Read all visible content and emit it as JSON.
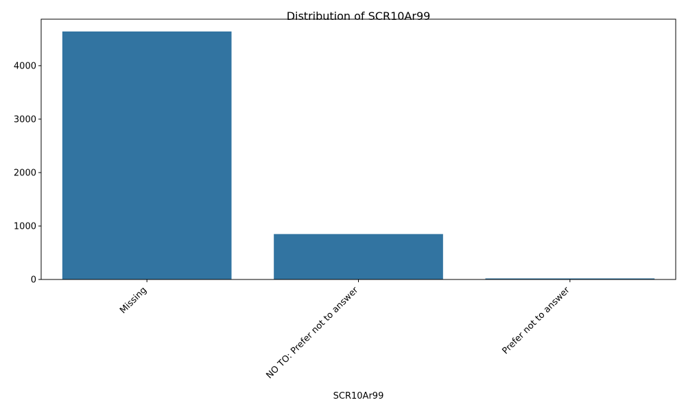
{
  "chart_data": {
    "type": "bar",
    "title": "Distribution of SCR10Ar99",
    "xlabel": "SCR10Ar99",
    "ylabel": "",
    "categories": [
      "Missing",
      "NO TO: Prefer not to answer",
      "Prefer not to answer"
    ],
    "values": [
      4640,
      850,
      20
    ],
    "ylim": [
      0,
      4870
    ],
    "yticks": [
      0,
      1000,
      2000,
      3000,
      4000
    ],
    "grid": false,
    "legend": "none",
    "bar_color": "#3274a1"
  }
}
